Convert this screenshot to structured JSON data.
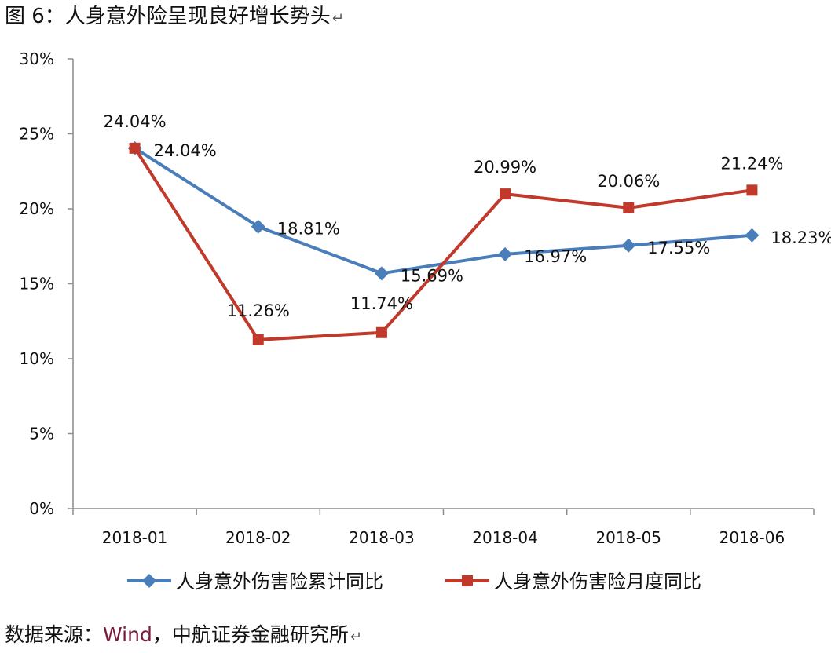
{
  "figure_title": "图 6：人身意外险呈现良好增长势头",
  "paragraph_mark": "↵",
  "source": {
    "prefix": "数据来源：",
    "brand": "Wind",
    "suffix": "，中航证券金融研究所"
  },
  "chart_data": {
    "type": "line",
    "title": "",
    "xlabel": "",
    "ylabel": "",
    "categories": [
      "2018-01",
      "2018-02",
      "2018-03",
      "2018-04",
      "2018-05",
      "2018-06"
    ],
    "ylim": [
      0,
      30
    ],
    "yticks": [
      0,
      5,
      10,
      15,
      20,
      25,
      30
    ],
    "ytick_labels": [
      "0%",
      "5%",
      "10%",
      "15%",
      "20%",
      "25%",
      "30%"
    ],
    "grid": false,
    "legend_position": "bottom",
    "series": [
      {
        "name": "人身意外伤害险累计同比",
        "color": "#4a7ebb",
        "marker": "diamond",
        "values": [
          24.04,
          18.81,
          15.69,
          16.97,
          17.55,
          18.23
        ],
        "labels": [
          "24.04%",
          "18.81%",
          "15.69%",
          "16.97%",
          "17.55%",
          "18.23%"
        ]
      },
      {
        "name": "人身意外伤害险月度同比",
        "color": "#c0392b",
        "marker": "square",
        "values": [
          24.04,
          11.26,
          11.74,
          20.99,
          20.06,
          21.24
        ],
        "labels": [
          "24.04%",
          "11.26%",
          "11.74%",
          "20.99%",
          "20.06%",
          "21.24%"
        ]
      }
    ]
  }
}
